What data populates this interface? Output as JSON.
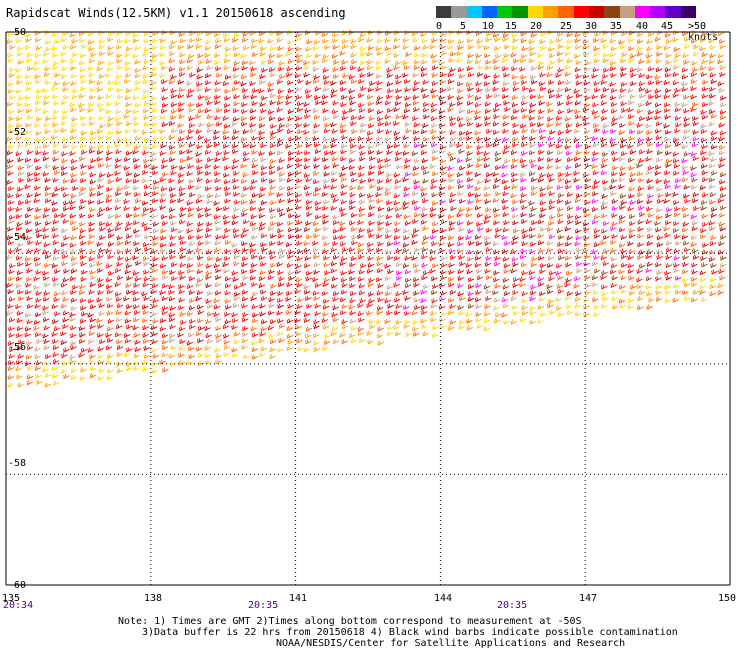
{
  "title": "Rapidscat Winds(12.5KM) v1.1 20150618 ascending",
  "legend": {
    "labels": [
      "0",
      "5",
      "10",
      "15",
      "20",
      "25",
      "30",
      "35",
      "40",
      "45",
      ">50 knots"
    ],
    "colors": [
      "#3c3c3c",
      "#9a9a9a",
      "#00c8ff",
      "#0064ff",
      "#00c800",
      "#009600",
      "#ffd700",
      "#ffa000",
      "#ff6400",
      "#ff0000",
      "#c80000",
      "#8b4513",
      "#c8a080",
      "#ff00ff",
      "#b400ff",
      "#6400c8",
      "#3c0064"
    ]
  },
  "map": {
    "lat_labels": [
      "-50",
      "-52",
      "-54",
      "-56",
      "-58",
      "-60"
    ],
    "lon_labels": [
      "135",
      "138",
      "141",
      "144",
      "147",
      "150"
    ],
    "lat_range": [
      -60,
      -50
    ],
    "lon_range": [
      135,
      150
    ],
    "grid": "dotted"
  },
  "times": [
    "20:34",
    "20:35",
    "20:35"
  ],
  "note": {
    "line1": "Note: 1) Times are GMT 2)Times along bottom correspond to measurement at -50S",
    "line2": "3)Data buffer is 22 hrs from 20150618 4) Black wind barbs indicate possible contamination",
    "line3": "NOAA/NESDIS/Center for Satellite Applications and Research"
  }
}
